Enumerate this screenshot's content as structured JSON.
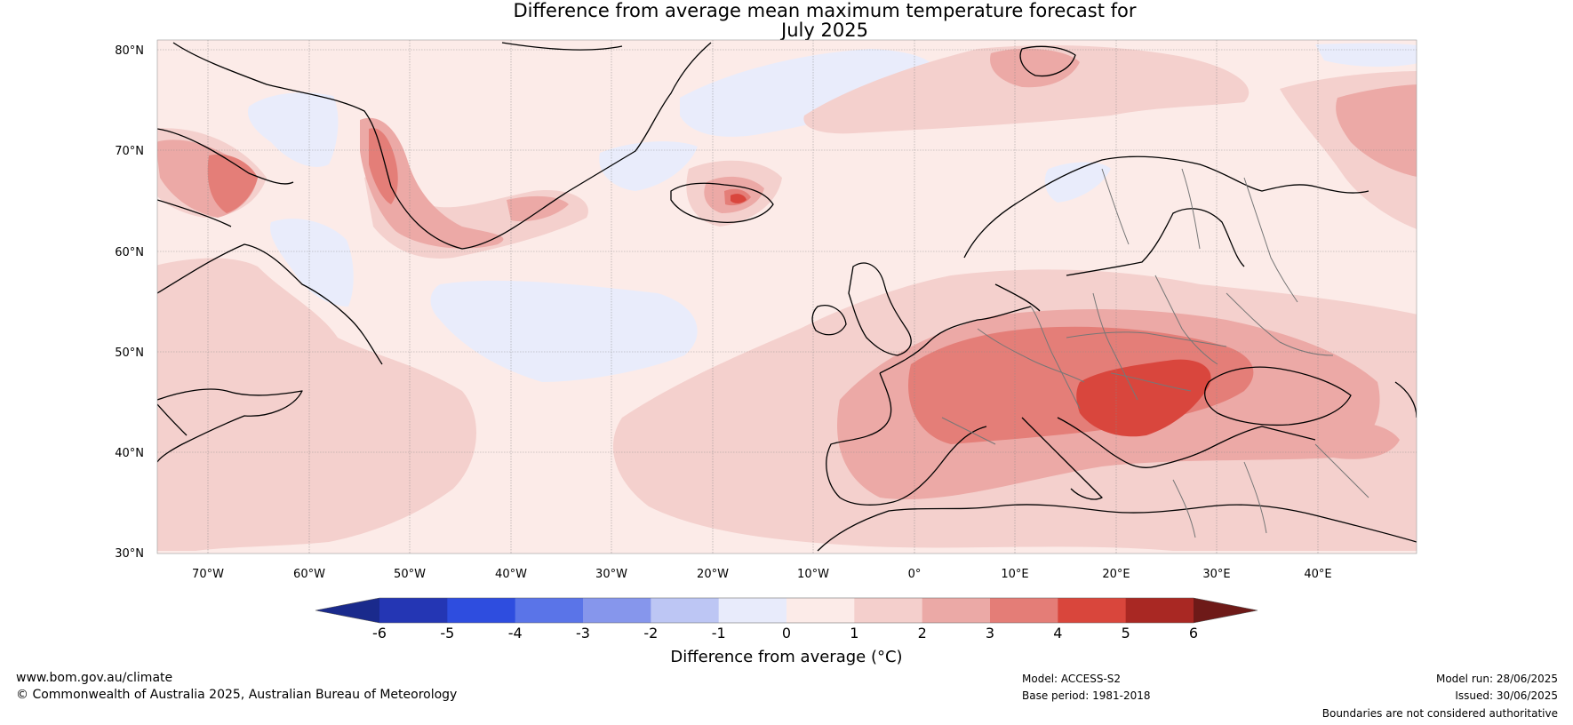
{
  "title": {
    "line1": "Difference from average mean maximum temperature forecast for",
    "line2": "July 2025"
  },
  "map": {
    "lat_ticks": [
      "80°N",
      "70°N",
      "60°N",
      "50°N",
      "40°N",
      "30°N"
    ],
    "lon_ticks": [
      "70°W",
      "60°W",
      "50°W",
      "40°W",
      "30°W",
      "20°W",
      "10°W",
      "0°",
      "10°E",
      "20°E",
      "30°E",
      "40°E"
    ],
    "background_color": "#fcebe8"
  },
  "colorbar": {
    "title": "Difference from average (°C)",
    "ticks": [
      "-6",
      "-5",
      "-4",
      "-3",
      "-2",
      "-1",
      "0",
      "1",
      "2",
      "3",
      "4",
      "5",
      "6"
    ],
    "colors": [
      "#1a2a8c",
      "#2436b4",
      "#2e4ddf",
      "#5a74e8",
      "#8696ec",
      "#bdc6f4",
      "#e8ebfb",
      "#fcebe8",
      "#f4cfcc",
      "#eba9a6",
      "#e47d77",
      "#d9463c",
      "#a92823",
      "#6e1a18"
    ]
  },
  "footer": {
    "website": "www.bom.gov.au/climate",
    "copyright": "© Commonwealth of Australia 2025, Australian Bureau of Meteorology",
    "model": "Model: ACCESS-S2",
    "base_period": "Base period: 1981-2018",
    "model_run": "Model run: 28/06/2025",
    "issued": "Issued: 30/06/2025",
    "disclaimer": "Boundaries are not considered authoritative"
  }
}
